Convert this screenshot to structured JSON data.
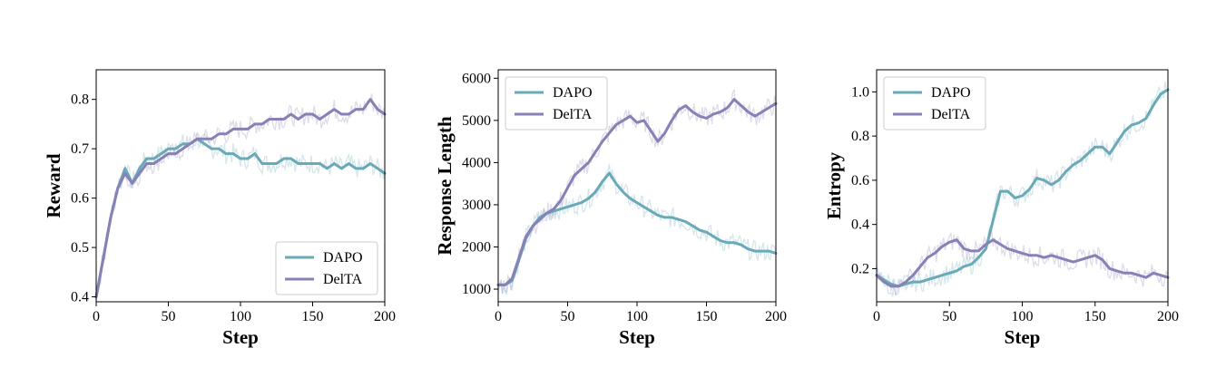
{
  "colors": {
    "dapo": "#6aa9b7",
    "delta": "#8781b5"
  },
  "chart_data": [
    {
      "type": "line",
      "xlabel": "Step",
      "ylabel": "Reward",
      "xlim": [
        0,
        200
      ],
      "ylim": [
        0.39,
        0.86
      ],
      "xticks": [
        0,
        50,
        100,
        150,
        200
      ],
      "yticks": [
        0.4,
        0.5,
        0.6,
        0.7,
        0.8
      ],
      "ytick_labels": [
        "0.4",
        "0.5",
        "0.6",
        "0.7",
        "0.8"
      ],
      "legend_position": "lower-right",
      "grid": false,
      "series": [
        {
          "name": "DAPO",
          "x": [
            0,
            5,
            10,
            15,
            20,
            25,
            30,
            35,
            40,
            45,
            50,
            55,
            60,
            65,
            70,
            75,
            80,
            85,
            90,
            95,
            100,
            105,
            110,
            115,
            120,
            125,
            130,
            135,
            140,
            145,
            150,
            155,
            160,
            165,
            170,
            175,
            180,
            185,
            190,
            195,
            200
          ],
          "y": [
            0.4,
            0.48,
            0.56,
            0.62,
            0.66,
            0.63,
            0.66,
            0.68,
            0.68,
            0.69,
            0.7,
            0.7,
            0.71,
            0.71,
            0.72,
            0.71,
            0.7,
            0.7,
            0.69,
            0.69,
            0.68,
            0.68,
            0.69,
            0.67,
            0.67,
            0.67,
            0.68,
            0.68,
            0.67,
            0.67,
            0.67,
            0.67,
            0.66,
            0.67,
            0.66,
            0.67,
            0.66,
            0.66,
            0.67,
            0.66,
            0.65
          ]
        },
        {
          "name": "DelTA",
          "x": [
            0,
            5,
            10,
            15,
            20,
            25,
            30,
            35,
            40,
            45,
            50,
            55,
            60,
            65,
            70,
            75,
            80,
            85,
            90,
            95,
            100,
            105,
            110,
            115,
            120,
            125,
            130,
            135,
            140,
            145,
            150,
            155,
            160,
            165,
            170,
            175,
            180,
            185,
            190,
            195,
            200
          ],
          "y": [
            0.4,
            0.48,
            0.56,
            0.62,
            0.65,
            0.63,
            0.65,
            0.67,
            0.67,
            0.68,
            0.69,
            0.69,
            0.7,
            0.71,
            0.72,
            0.72,
            0.72,
            0.73,
            0.73,
            0.74,
            0.74,
            0.74,
            0.75,
            0.75,
            0.76,
            0.76,
            0.76,
            0.77,
            0.76,
            0.77,
            0.77,
            0.76,
            0.77,
            0.78,
            0.77,
            0.77,
            0.78,
            0.78,
            0.8,
            0.78,
            0.77
          ]
        }
      ]
    },
    {
      "type": "line",
      "xlabel": "Step",
      "ylabel": "Response Length",
      "xlim": [
        0,
        200
      ],
      "ylim": [
        700,
        6200
      ],
      "xticks": [
        0,
        50,
        100,
        150,
        200
      ],
      "yticks": [
        1000,
        2000,
        3000,
        4000,
        5000,
        6000
      ],
      "ytick_labels": [
        "1000",
        "2000",
        "3000",
        "4000",
        "5000",
        "6000"
      ],
      "legend_position": "upper-left",
      "grid": false,
      "series": [
        {
          "name": "DAPO",
          "x": [
            0,
            5,
            10,
            15,
            20,
            25,
            30,
            35,
            40,
            45,
            50,
            55,
            60,
            65,
            70,
            75,
            80,
            85,
            90,
            95,
            100,
            105,
            110,
            115,
            120,
            125,
            130,
            135,
            140,
            145,
            150,
            155,
            160,
            165,
            170,
            175,
            180,
            185,
            190,
            195,
            200
          ],
          "y": [
            1100,
            1100,
            1200,
            1700,
            2200,
            2500,
            2700,
            2800,
            2850,
            2900,
            2950,
            3000,
            3050,
            3150,
            3300,
            3550,
            3750,
            3500,
            3300,
            3150,
            3050,
            2950,
            2850,
            2750,
            2700,
            2700,
            2650,
            2600,
            2500,
            2400,
            2350,
            2250,
            2150,
            2100,
            2100,
            2050,
            1950,
            1900,
            1900,
            1900,
            1850
          ]
        },
        {
          "name": "DelTA",
          "x": [
            0,
            5,
            10,
            15,
            20,
            25,
            30,
            35,
            40,
            45,
            50,
            55,
            60,
            65,
            70,
            75,
            80,
            85,
            90,
            95,
            100,
            105,
            110,
            115,
            120,
            125,
            130,
            135,
            140,
            145,
            150,
            155,
            160,
            165,
            170,
            175,
            180,
            185,
            190,
            195,
            200
          ],
          "y": [
            1100,
            1100,
            1250,
            1750,
            2250,
            2500,
            2650,
            2800,
            2900,
            3100,
            3400,
            3700,
            3850,
            4000,
            4250,
            4500,
            4700,
            4900,
            5000,
            5100,
            4950,
            5000,
            4750,
            4500,
            4700,
            5000,
            5250,
            5350,
            5200,
            5100,
            5050,
            5150,
            5200,
            5300,
            5500,
            5350,
            5200,
            5100,
            5200,
            5300,
            5400
          ]
        }
      ]
    },
    {
      "type": "line",
      "xlabel": "Step",
      "ylabel": "Entropy",
      "xlim": [
        0,
        200
      ],
      "ylim": [
        0.05,
        1.1
      ],
      "xticks": [
        0,
        50,
        100,
        150,
        200
      ],
      "yticks": [
        0.2,
        0.4,
        0.6,
        0.8,
        1.0
      ],
      "ytick_labels": [
        "0.2",
        "0.4",
        "0.6",
        "0.8",
        "1.0"
      ],
      "legend_position": "upper-left",
      "grid": false,
      "series": [
        {
          "name": "DAPO",
          "x": [
            0,
            5,
            10,
            15,
            20,
            25,
            30,
            35,
            40,
            45,
            50,
            55,
            60,
            65,
            70,
            75,
            80,
            85,
            90,
            95,
            100,
            105,
            110,
            115,
            120,
            125,
            130,
            135,
            140,
            145,
            150,
            155,
            160,
            165,
            170,
            175,
            180,
            185,
            190,
            195,
            200
          ],
          "y": [
            0.17,
            0.15,
            0.13,
            0.12,
            0.13,
            0.14,
            0.14,
            0.15,
            0.16,
            0.17,
            0.18,
            0.19,
            0.21,
            0.22,
            0.25,
            0.29,
            0.42,
            0.55,
            0.55,
            0.52,
            0.53,
            0.56,
            0.61,
            0.6,
            0.58,
            0.6,
            0.64,
            0.67,
            0.69,
            0.72,
            0.75,
            0.75,
            0.72,
            0.77,
            0.82,
            0.85,
            0.86,
            0.88,
            0.94,
            0.99,
            1.01
          ]
        },
        {
          "name": "DelTA",
          "x": [
            0,
            5,
            10,
            15,
            20,
            25,
            30,
            35,
            40,
            45,
            50,
            55,
            60,
            65,
            70,
            75,
            80,
            85,
            90,
            95,
            100,
            105,
            110,
            115,
            120,
            125,
            130,
            135,
            140,
            145,
            150,
            155,
            160,
            165,
            170,
            175,
            180,
            185,
            190,
            195,
            200
          ],
          "y": [
            0.17,
            0.14,
            0.12,
            0.12,
            0.14,
            0.17,
            0.21,
            0.25,
            0.27,
            0.3,
            0.32,
            0.33,
            0.29,
            0.28,
            0.28,
            0.31,
            0.33,
            0.31,
            0.29,
            0.28,
            0.27,
            0.26,
            0.26,
            0.25,
            0.26,
            0.25,
            0.24,
            0.23,
            0.24,
            0.25,
            0.26,
            0.24,
            0.2,
            0.19,
            0.18,
            0.18,
            0.17,
            0.16,
            0.18,
            0.17,
            0.16
          ]
        }
      ]
    }
  ]
}
